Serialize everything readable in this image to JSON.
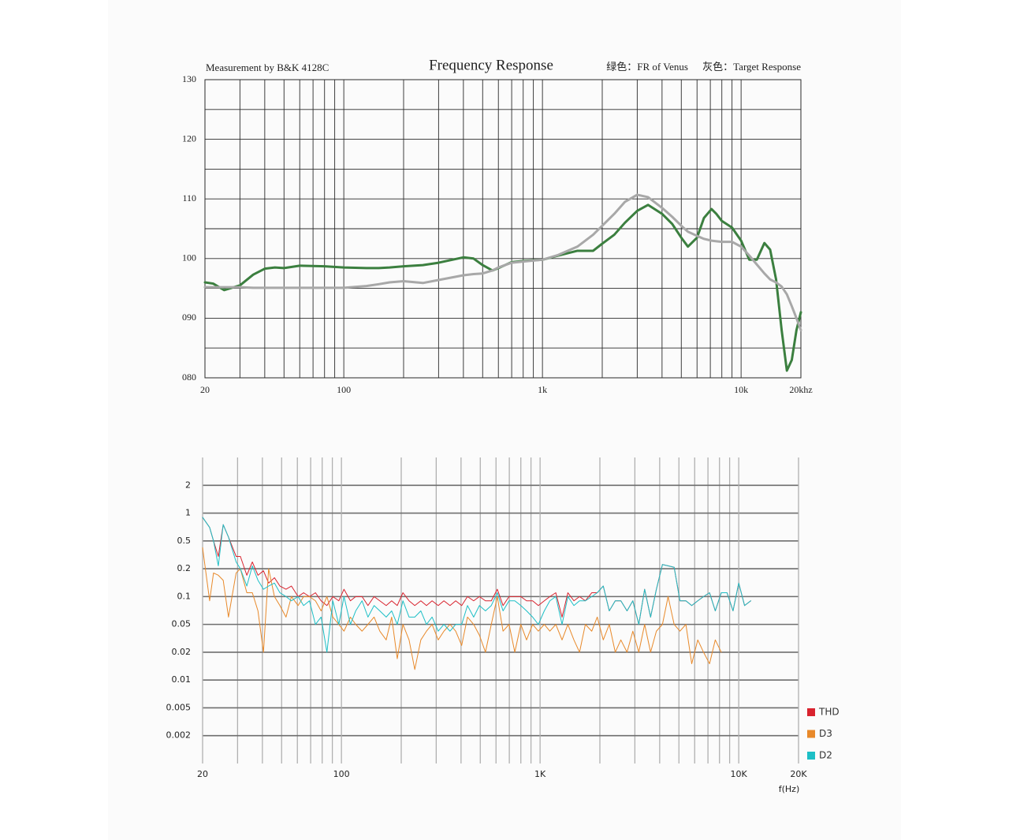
{
  "chart_data": [
    {
      "type": "line",
      "title": "Frequency Response",
      "note": "Measurement by B&K 4128C",
      "xscale": "log",
      "xlim": [
        20,
        20000
      ],
      "xticks": [
        20,
        100,
        {
          "value": 1000,
          "label": "1k"
        },
        {
          "value": 10000,
          "label": "10k"
        },
        {
          "value": 20000,
          "label": "20khz"
        }
      ],
      "xminor": [
        30,
        40,
        50,
        60,
        70,
        80,
        90,
        200,
        300,
        400,
        500,
        600,
        700,
        800,
        900,
        2000,
        3000,
        4000,
        5000,
        6000,
        7000,
        8000,
        9000
      ],
      "ylim": [
        80,
        130
      ],
      "yticks": [
        130,
        120,
        110,
        100,
        {
          "value": 90,
          "label": "090"
        },
        {
          "value": 80,
          "label": "080"
        }
      ],
      "yminor": [
        125,
        115,
        105,
        95,
        85
      ],
      "grid": true,
      "legend": "top-right",
      "x": [
        20,
        22,
        25,
        30,
        35,
        40,
        45,
        50,
        60,
        80,
        100,
        130,
        150,
        170,
        200,
        250,
        300,
        400,
        450,
        500,
        560,
        600,
        700,
        800,
        1000,
        1200,
        1500,
        1800,
        2000,
        2300,
        2600,
        3000,
        3400,
        4000,
        4500,
        5000,
        5400,
        6000,
        6500,
        7100,
        7500,
        8000,
        9000,
        10000,
        11000,
        12000,
        13100,
        14000,
        15000,
        16000,
        17000,
        18000,
        19000,
        20000
      ],
      "series": [
        {
          "name": "绿色：FR of Venus",
          "color": "#3b7f3f",
          "values": [
            96,
            95.8,
            94.7,
            95.5,
            97.3,
            98.3,
            98.5,
            98.4,
            98.8,
            98.7,
            98.5,
            98.4,
            98.4,
            98.5,
            98.7,
            98.9,
            99.3,
            100.2,
            100,
            98.9,
            98,
            98.4,
            99.4,
            99.6,
            99.8,
            100.5,
            101.3,
            101.3,
            102.5,
            104,
            106,
            108,
            109,
            107.5,
            105.8,
            103.5,
            102,
            103.5,
            106.8,
            108.3,
            107.5,
            106.3,
            105.2,
            103,
            99.8,
            99.8,
            102.6,
            101.5,
            96.5,
            88,
            81.2,
            83,
            88,
            91
          ]
        },
        {
          "name": "灰色：Target Response",
          "color": "#a8a8a8",
          "values": [
            95.2,
            95.2,
            95.2,
            95.2,
            95.1,
            95.1,
            95.1,
            95.1,
            95.1,
            95.1,
            95.1,
            95.4,
            95.7,
            96,
            96.2,
            95.9,
            96.4,
            97.2,
            97.4,
            97.5,
            98,
            98.5,
            99.3,
            99.5,
            99.8,
            100.6,
            102,
            104,
            105.5,
            107.5,
            109.5,
            110.7,
            110.3,
            108.5,
            107,
            105.5,
            104.5,
            103.8,
            103.3,
            103,
            102.9,
            102.8,
            102.8,
            102,
            100.5,
            99,
            97.5,
            96.5,
            96,
            95.3,
            94,
            92,
            90,
            88
          ]
        }
      ]
    },
    {
      "type": "line",
      "xlabel": "f(Hz)",
      "xscale": "log",
      "xlim": [
        20,
        20000
      ],
      "xticks": [
        20,
        100,
        {
          "value": 1000,
          "label": "1K"
        },
        {
          "value": 10000,
          "label": "10K"
        },
        {
          "value": 20000,
          "label": "20K"
        }
      ],
      "xminor": [
        30,
        40,
        50,
        60,
        70,
        80,
        90,
        200,
        300,
        400,
        500,
        600,
        700,
        800,
        900,
        2000,
        3000,
        4000,
        5000,
        6000,
        7000,
        8000,
        9000
      ],
      "yscale": "1-2-5",
      "ylim": [
        0.001,
        5
      ],
      "yticks": [
        2,
        1,
        0.5,
        0.2,
        0.1,
        0.05,
        0.02,
        0.01,
        0.005,
        0.002
      ],
      "grid": true,
      "legend": "right",
      "x": [
        20,
        21.7,
        22.7,
        24,
        25.4,
        27,
        29.5,
        31,
        33.4,
        35.6,
        38,
        40.5,
        43,
        46,
        49,
        52.6,
        56,
        60.5,
        64.5,
        69,
        74,
        79,
        84.5,
        90.5,
        97,
        103,
        111,
        118,
        127,
        136,
        146,
        156,
        168,
        179,
        191,
        204,
        219,
        234,
        251,
        268,
        286,
        307,
        328,
        352,
        376,
        403,
        431,
        463,
        495,
        531,
        568,
        609,
        651,
        698,
        746,
        800,
        855,
        917,
        980,
        1050,
        1120,
        1200,
        1290,
        1380,
        1480,
        1580,
        1690,
        1820,
        1940,
        2080,
        2230,
        2390,
        2550,
        2740,
        2930,
        3140,
        3360,
        3600,
        3850,
        4130,
        4410,
        4730,
        5060,
        5420,
        5800,
        6220,
        6650,
        7130,
        7620,
        8170,
        8730,
        9360,
        10000,
        10700,
        11500
      ],
      "series": [
        {
          "name": "THD",
          "color": "#d9232e",
          "values": [
            0.9,
            0.7,
            0.5,
            0.3,
            0.75,
            0.55,
            0.3,
            0.3,
            0.17,
            0.25,
            0.17,
            0.19,
            0.14,
            0.16,
            0.13,
            0.12,
            0.13,
            0.1,
            0.11,
            0.1,
            0.11,
            0.09,
            0.08,
            0.1,
            0.09,
            0.12,
            0.09,
            0.1,
            0.1,
            0.08,
            0.1,
            0.09,
            0.08,
            0.09,
            0.08,
            0.11,
            0.09,
            0.08,
            0.09,
            0.08,
            0.09,
            0.08,
            0.09,
            0.08,
            0.09,
            0.08,
            0.1,
            0.09,
            0.1,
            0.09,
            0.09,
            0.12,
            0.08,
            0.1,
            0.1,
            0.1,
            0.09,
            0.09,
            0.08,
            0.09,
            0.1,
            0.11,
            0.06,
            0.11,
            0.09,
            0.1,
            0.09,
            0.11,
            0.11,
            0.13,
            0.07,
            0.09,
            0.09,
            0.07,
            0.09,
            0.05,
            0.12,
            0.06,
            0.12,
            0.23,
            0.22,
            0.21,
            0.09,
            0.09,
            0.08,
            0.09,
            0.1,
            0.11,
            0.07,
            0.11,
            0.11,
            0.07,
            0.14,
            0.08,
            0.09
          ]
        },
        {
          "name": "D3",
          "color": "#e8892a",
          "values": [
            0.4,
            0.09,
            0.18,
            0.17,
            0.15,
            0.06,
            0.18,
            0.2,
            0.11,
            0.11,
            0.07,
            0.02,
            0.2,
            0.1,
            0.08,
            0.06,
            0.1,
            0.08,
            0.1,
            0.1,
            0.09,
            0.07,
            0.1,
            0.06,
            0.05,
            0.04,
            0.06,
            0.05,
            0.04,
            0.05,
            0.06,
            0.04,
            0.03,
            0.06,
            0.017,
            0.05,
            0.03,
            0.013,
            0.03,
            0.04,
            0.05,
            0.03,
            0.04,
            0.05,
            0.04,
            0.025,
            0.06,
            0.05,
            0.035,
            0.02,
            0.05,
            0.1,
            0.04,
            0.05,
            0.02,
            0.05,
            0.03,
            0.05,
            0.04,
            0.05,
            0.04,
            0.05,
            0.03,
            0.05,
            0.03,
            0.02,
            0.05,
            0.04,
            0.06,
            0.03,
            0.05,
            0.02,
            0.03,
            0.02,
            0.04,
            0.02,
            0.05,
            0.02,
            0.04,
            0.05,
            0.1,
            0.05,
            0.04,
            0.05,
            0.015,
            0.03,
            0.02,
            0.015,
            0.03,
            0.02,
            null,
            null,
            null,
            null,
            null
          ]
        },
        {
          "name": "D2",
          "color": "#1dbfc6",
          "values": [
            0.9,
            0.7,
            0.5,
            0.22,
            0.75,
            0.55,
            0.25,
            0.2,
            0.13,
            0.22,
            0.15,
            0.12,
            0.13,
            0.14,
            0.11,
            0.1,
            0.09,
            0.1,
            0.08,
            0.09,
            0.05,
            0.06,
            0.02,
            0.09,
            0.05,
            0.1,
            0.05,
            0.07,
            0.09,
            0.06,
            0.08,
            0.07,
            0.06,
            0.07,
            0.05,
            0.09,
            0.06,
            0.06,
            0.07,
            0.05,
            0.06,
            0.04,
            0.05,
            0.04,
            0.05,
            0.05,
            0.08,
            0.06,
            0.08,
            0.07,
            0.08,
            0.11,
            0.07,
            0.09,
            0.09,
            0.08,
            0.07,
            0.06,
            0.05,
            0.07,
            0.09,
            0.1,
            0.05,
            0.1,
            0.08,
            0.09,
            0.09,
            0.1,
            0.11,
            0.13,
            0.07,
            0.09,
            0.09,
            0.07,
            0.09,
            0.05,
            0.12,
            0.06,
            0.12,
            0.23,
            0.22,
            0.21,
            0.09,
            0.09,
            0.08,
            0.09,
            0.1,
            0.11,
            0.07,
            0.11,
            0.11,
            0.07,
            0.14,
            0.08,
            0.09
          ]
        }
      ]
    }
  ]
}
